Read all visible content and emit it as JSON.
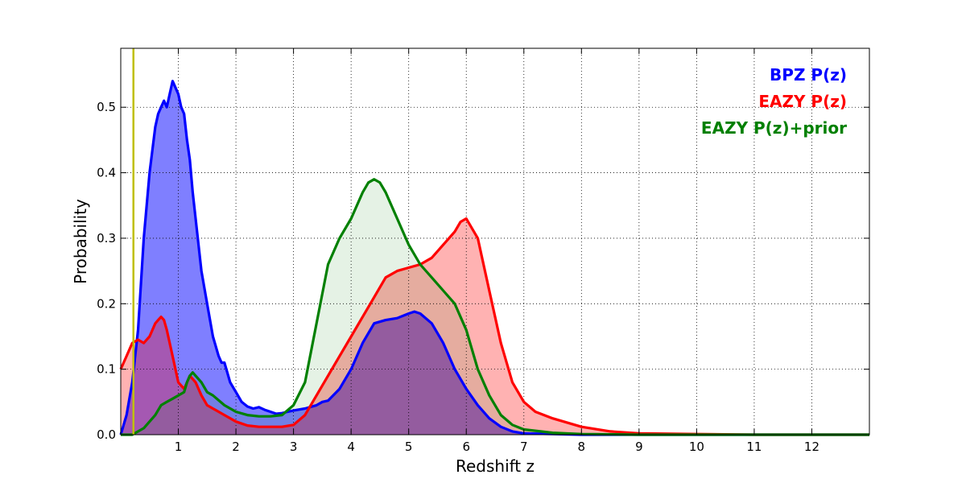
{
  "chart_data": {
    "type": "area",
    "xlabel": "Redshift z",
    "ylabel": "Probability",
    "xlim": [
      0,
      13
    ],
    "ylim": [
      0,
      0.59
    ],
    "grid": true,
    "legend_position": "top-right",
    "xticks": [
      1,
      2,
      3,
      4,
      5,
      6,
      7,
      8,
      9,
      10,
      11,
      12
    ],
    "xtick_labels": [
      "1",
      "2",
      "3",
      "4",
      "5",
      "6",
      "7",
      "8",
      "9",
      "10",
      "11",
      "12"
    ],
    "yticks": [
      0.0,
      0.1,
      0.2,
      0.3,
      0.4,
      0.5
    ],
    "ytick_labels": [
      "0.0",
      "0.1",
      "0.2",
      "0.3",
      "0.4",
      "0.5"
    ],
    "vline": {
      "x": 0.22,
      "color": "#bfbf00"
    },
    "series": [
      {
        "name": "BPZ P(z)",
        "color": "#0000ff",
        "fill_opacity": 0.5,
        "x": [
          0,
          0.1,
          0.2,
          0.3,
          0.4,
          0.5,
          0.6,
          0.65,
          0.7,
          0.75,
          0.8,
          0.85,
          0.9,
          0.95,
          1.0,
          1.05,
          1.1,
          1.15,
          1.2,
          1.25,
          1.3,
          1.4,
          1.5,
          1.6,
          1.7,
          1.75,
          1.8,
          1.9,
          2.0,
          2.1,
          2.2,
          2.3,
          2.4,
          2.5,
          2.6,
          2.7,
          2.8,
          2.9,
          3.0,
          3.2,
          3.4,
          3.5,
          3.6,
          3.8,
          4.0,
          4.2,
          4.4,
          4.6,
          4.8,
          5.0,
          5.1,
          5.2,
          5.4,
          5.6,
          5.8,
          6.0,
          6.2,
          6.4,
          6.6,
          6.8,
          7.0,
          7.5,
          8.0,
          9.0,
          10.0,
          11.0,
          12.0,
          13.0
        ],
        "values": [
          0.0,
          0.03,
          0.08,
          0.16,
          0.3,
          0.4,
          0.47,
          0.49,
          0.5,
          0.51,
          0.5,
          0.52,
          0.54,
          0.53,
          0.52,
          0.5,
          0.49,
          0.45,
          0.42,
          0.37,
          0.33,
          0.25,
          0.2,
          0.15,
          0.12,
          0.11,
          0.11,
          0.08,
          0.065,
          0.05,
          0.043,
          0.04,
          0.042,
          0.038,
          0.035,
          0.032,
          0.033,
          0.035,
          0.037,
          0.04,
          0.045,
          0.05,
          0.052,
          0.07,
          0.1,
          0.14,
          0.17,
          0.175,
          0.178,
          0.185,
          0.188,
          0.185,
          0.17,
          0.14,
          0.1,
          0.07,
          0.045,
          0.025,
          0.012,
          0.005,
          0.002,
          0.001,
          0.0,
          0.0,
          0.0,
          0.0,
          0.0,
          0.0
        ]
      },
      {
        "name": "EAZY P(z)",
        "color": "#ff0000",
        "fill_opacity": 0.3,
        "x": [
          0,
          0.1,
          0.2,
          0.3,
          0.4,
          0.5,
          0.6,
          0.65,
          0.7,
          0.75,
          0.8,
          0.9,
          1.0,
          1.1,
          1.15,
          1.2,
          1.25,
          1.3,
          1.4,
          1.5,
          1.6,
          1.7,
          1.8,
          2.0,
          2.2,
          2.4,
          2.6,
          2.8,
          3.0,
          3.2,
          3.4,
          3.6,
          3.8,
          4.0,
          4.2,
          4.4,
          4.6,
          4.8,
          5.0,
          5.2,
          5.4,
          5.6,
          5.8,
          5.9,
          6.0,
          6.2,
          6.4,
          6.6,
          6.8,
          7.0,
          7.2,
          7.5,
          8.0,
          8.5,
          9.0,
          10.0,
          11.0,
          12.0,
          13.0
        ],
        "values": [
          0.1,
          0.12,
          0.14,
          0.145,
          0.14,
          0.15,
          0.17,
          0.175,
          0.18,
          0.175,
          0.16,
          0.12,
          0.08,
          0.07,
          0.08,
          0.09,
          0.085,
          0.08,
          0.06,
          0.045,
          0.04,
          0.035,
          0.03,
          0.02,
          0.014,
          0.012,
          0.012,
          0.012,
          0.015,
          0.03,
          0.06,
          0.09,
          0.12,
          0.15,
          0.18,
          0.21,
          0.24,
          0.25,
          0.255,
          0.26,
          0.27,
          0.29,
          0.31,
          0.325,
          0.33,
          0.3,
          0.22,
          0.14,
          0.08,
          0.05,
          0.035,
          0.025,
          0.012,
          0.005,
          0.002,
          0.001,
          0.0,
          0.0,
          0.0
        ]
      },
      {
        "name": "EAZY P(z)+prior",
        "color": "#008000",
        "fill_opacity": 0.1,
        "x": [
          0,
          0.2,
          0.4,
          0.6,
          0.7,
          0.8,
          0.9,
          1.0,
          1.1,
          1.15,
          1.2,
          1.25,
          1.3,
          1.4,
          1.5,
          1.6,
          1.8,
          2.0,
          2.2,
          2.4,
          2.6,
          2.8,
          3.0,
          3.2,
          3.4,
          3.6,
          3.8,
          4.0,
          4.2,
          4.3,
          4.4,
          4.5,
          4.6,
          4.8,
          5.0,
          5.2,
          5.4,
          5.6,
          5.8,
          6.0,
          6.2,
          6.4,
          6.6,
          6.8,
          7.0,
          7.5,
          8.0,
          9.0,
          10.0,
          11.0,
          12.0,
          13.0
        ],
        "values": [
          0.0,
          0.0,
          0.01,
          0.03,
          0.045,
          0.05,
          0.055,
          0.06,
          0.065,
          0.08,
          0.09,
          0.095,
          0.09,
          0.08,
          0.065,
          0.06,
          0.045,
          0.035,
          0.03,
          0.028,
          0.028,
          0.03,
          0.045,
          0.08,
          0.17,
          0.26,
          0.3,
          0.33,
          0.37,
          0.385,
          0.39,
          0.385,
          0.37,
          0.33,
          0.29,
          0.26,
          0.24,
          0.22,
          0.2,
          0.16,
          0.1,
          0.06,
          0.03,
          0.015,
          0.008,
          0.003,
          0.001,
          0.0,
          0.0,
          0.0,
          0.0,
          0.0
        ]
      }
    ]
  }
}
